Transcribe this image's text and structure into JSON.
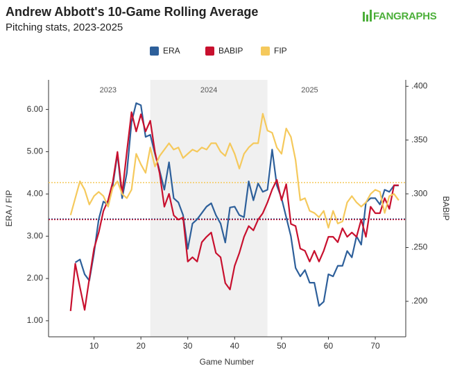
{
  "chart_data": {
    "type": "line",
    "title": "Andrew Abbott's 10-Game Rolling Average",
    "subtitle": "Pitching stats, 2023-2025",
    "brand": "FANGRAPHS",
    "xlabel": "Game Number",
    "ylabel": "ERA / FIP",
    "y2label": "BABIP",
    "xlim": [
      0.3,
      76.5
    ],
    "xticks": [
      10,
      20,
      30,
      40,
      50,
      60,
      70
    ],
    "ylim": [
      0.62,
      6.7
    ],
    "yticks": [
      {
        "value": 1,
        "label": "1.00"
      },
      {
        "value": 2,
        "label": "2.00"
      },
      {
        "value": 3,
        "label": "3.00"
      },
      {
        "value": 4,
        "label": "4.00"
      },
      {
        "value": 5,
        "label": "5.00"
      },
      {
        "value": 6,
        "label": "6.00"
      }
    ],
    "y2lim": [
      0.167,
      0.406
    ],
    "y2ticks": [
      {
        "value": 0.2,
        "label": ".200"
      },
      {
        "value": 0.25,
        "label": ".250"
      },
      {
        "value": 0.3,
        "label": ".300"
      },
      {
        "value": 0.35,
        "label": ".350"
      },
      {
        "value": 0.4,
        "label": ".400"
      }
    ],
    "shaded_regions": [
      {
        "start": 22,
        "end": 47,
        "color": "#f0f0f0"
      }
    ],
    "annotations": [
      {
        "text": "2023",
        "x": 13
      },
      {
        "text": "2024",
        "x": 34.5
      },
      {
        "text": "2025",
        "x": 56
      }
    ],
    "hlines": [
      {
        "value": 4.27,
        "color": "#f5c95c"
      },
      {
        "value": 3.41,
        "color": "#2d5f9a"
      },
      {
        "value": 0.276,
        "axis": "y2",
        "color": "#c8102e"
      }
    ],
    "legend": "top",
    "x": [
      5,
      6,
      7,
      8,
      9,
      10,
      11,
      12,
      13,
      14,
      15,
      16,
      17,
      18,
      19,
      20,
      21,
      22,
      23,
      24,
      25,
      26,
      27,
      28,
      29,
      30,
      31,
      32,
      33,
      34,
      35,
      36,
      37,
      38,
      39,
      40,
      41,
      42,
      43,
      44,
      45,
      46,
      47,
      48,
      49,
      50,
      51,
      52,
      53,
      54,
      55,
      56,
      57,
      58,
      59,
      60,
      61,
      62,
      63,
      64,
      65,
      66,
      67,
      68,
      69,
      70,
      71,
      72,
      73,
      74,
      75
    ],
    "series": [
      {
        "name": "ERA",
        "color": "#2d5f9a",
        "values": [
          null,
          2.38,
          2.45,
          2.1,
          1.95,
          2.6,
          3.4,
          3.82,
          3.75,
          4.2,
          4.95,
          3.9,
          4.5,
          5.7,
          6.15,
          6.1,
          5.35,
          5.4,
          4.95,
          4.55,
          4.1,
          4.75,
          3.9,
          3.8,
          3.5,
          2.7,
          3.3,
          3.4,
          3.55,
          3.7,
          3.78,
          3.5,
          3.3,
          2.85,
          3.68,
          3.7,
          3.5,
          3.45,
          4.3,
          3.85,
          4.25,
          4.05,
          4.1,
          5.05,
          4.2,
          3.9,
          3.45,
          3.0,
          2.25,
          2.05,
          2.2,
          1.9,
          1.9,
          1.35,
          1.45,
          2.1,
          2.05,
          2.3,
          2.3,
          2.65,
          2.5,
          3.0,
          2.8,
          3.8,
          3.9,
          3.9,
          3.75,
          4.1,
          4.05,
          4.2,
          4.2
        ]
      },
      {
        "name": "BABIP",
        "color": "#c8102e",
        "axis": "y2",
        "values": [
          0.191,
          0.235,
          0.213,
          0.192,
          0.221,
          0.249,
          0.264,
          0.284,
          0.294,
          0.311,
          0.339,
          0.3,
          0.339,
          0.376,
          0.358,
          0.374,
          0.358,
          0.368,
          0.339,
          0.319,
          0.288,
          0.3,
          0.28,
          0.276,
          0.278,
          0.237,
          0.241,
          0.237,
          0.255,
          0.26,
          0.264,
          0.245,
          0.241,
          0.217,
          0.211,
          0.233,
          0.245,
          0.26,
          0.27,
          0.266,
          0.276,
          0.282,
          0.292,
          0.304,
          0.313,
          0.294,
          0.309,
          0.272,
          0.27,
          0.249,
          0.247,
          0.237,
          0.247,
          0.237,
          0.247,
          0.26,
          0.26,
          0.255,
          0.268,
          0.26,
          0.264,
          0.26,
          0.276,
          0.26,
          0.288,
          0.282,
          0.282,
          0.296,
          0.286,
          0.308,
          0.308
        ]
      },
      {
        "name": "FIP",
        "color": "#f5c95c",
        "values": [
          3.5,
          3.9,
          4.3,
          4.1,
          3.75,
          3.95,
          4.05,
          3.95,
          3.7,
          4.15,
          4.3,
          4.0,
          3.9,
          4.1,
          4.95,
          4.7,
          4.5,
          5.1,
          4.65,
          4.9,
          5.05,
          5.2,
          5.05,
          5.1,
          4.85,
          4.95,
          5.05,
          5.0,
          5.1,
          5.05,
          5.2,
          5.2,
          5.0,
          4.9,
          5.2,
          4.95,
          4.6,
          4.95,
          5.1,
          5.2,
          5.2,
          5.9,
          5.5,
          5.45,
          5.1,
          4.95,
          5.55,
          5.35,
          4.8,
          3.85,
          3.9,
          3.6,
          3.55,
          3.45,
          3.6,
          3.2,
          3.6,
          3.3,
          3.35,
          3.8,
          3.95,
          3.8,
          3.7,
          3.8,
          4.0,
          4.1,
          4.05,
          3.55,
          3.95,
          4.0,
          3.85
        ]
      }
    ]
  }
}
